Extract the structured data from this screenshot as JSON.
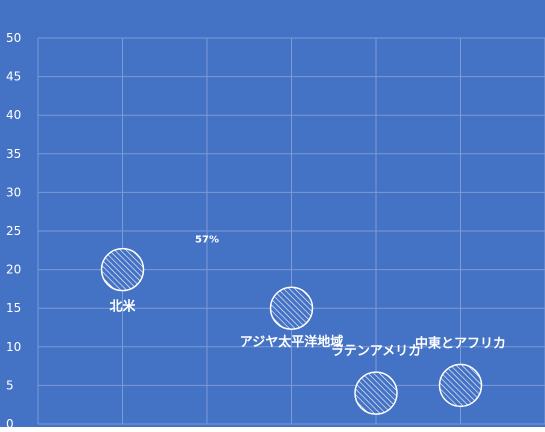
{
  "chart_data": {
    "type": "scatter",
    "title": "",
    "xlabel": "",
    "ylabel": "",
    "xlim": [
      0,
      6
    ],
    "ylim": [
      0,
      50
    ],
    "yticks": [
      0,
      5,
      10,
      15,
      20,
      25,
      30,
      35,
      40,
      45,
      50
    ],
    "grid": true,
    "legend": "none",
    "colors": {
      "background": "#4472c4",
      "grid": "#7c9ad6",
      "marker_fill": "#4472c4",
      "marker_stroke": "#ffffff",
      "text": "#ffffff"
    },
    "points": [
      {
        "label": "北米",
        "x": 1,
        "y": 20
      },
      {
        "label": "アジヤ太平洋地域",
        "x": 3,
        "y": 15
      },
      {
        "label": "ラテンアメリカ",
        "x": 4,
        "y": 4
      },
      {
        "label": "中東とアフリカ",
        "x": 5,
        "y": 5
      }
    ],
    "annotations": [
      {
        "text": "57%",
        "x": 2,
        "y": 23.5
      }
    ]
  }
}
